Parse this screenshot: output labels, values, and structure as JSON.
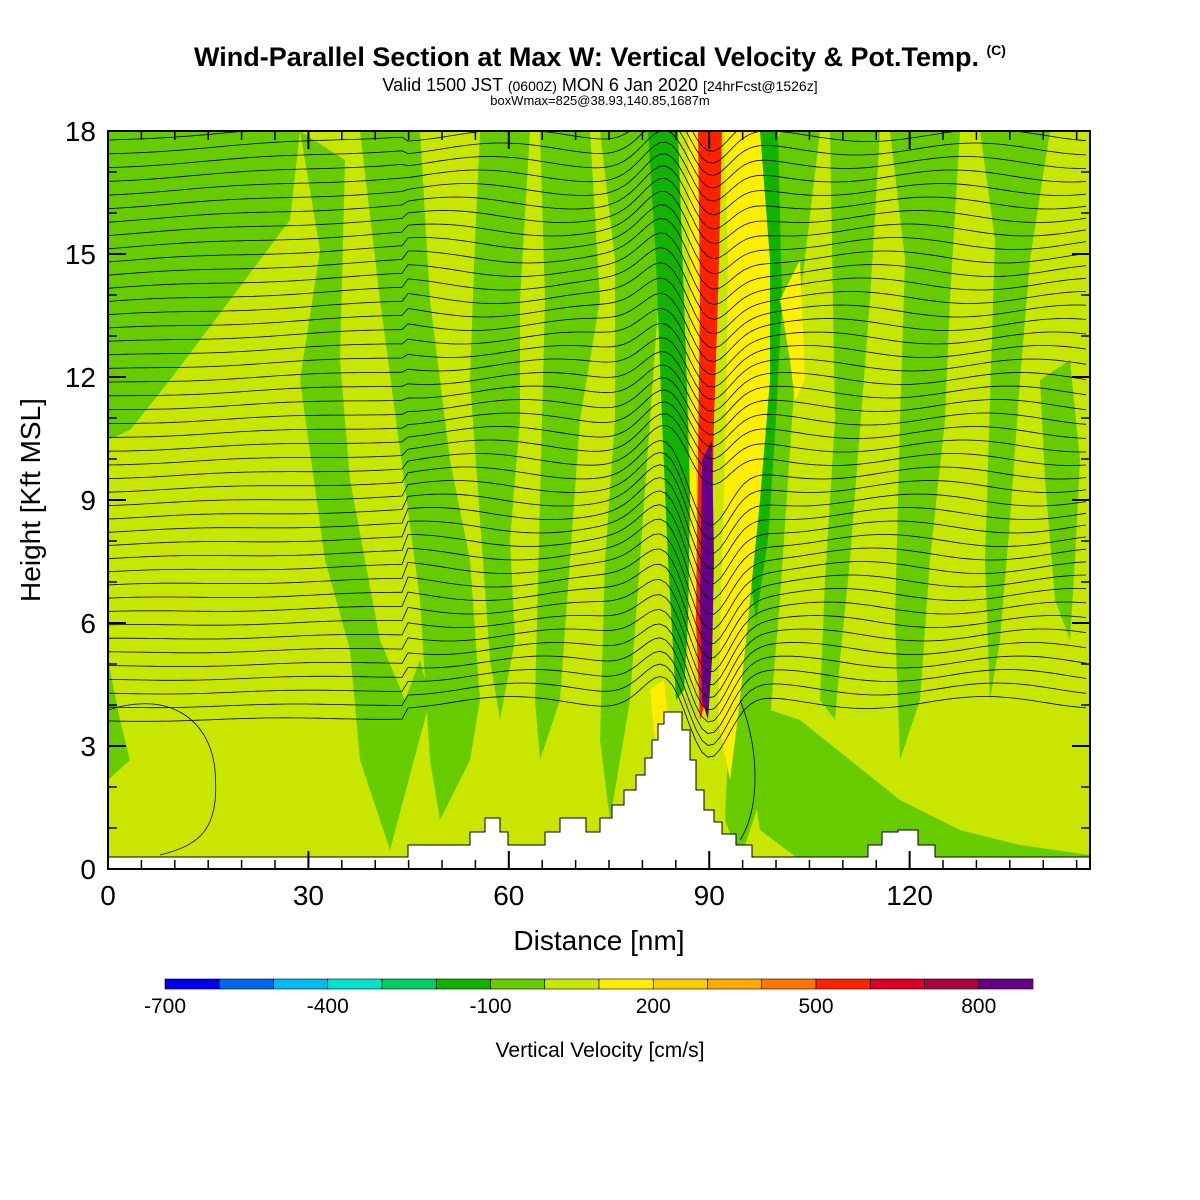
{
  "header": {
    "title_main": "Wind-Parallel Section at Max W: Vertical Velocity & Pot.Temp.",
    "title_mark": "(C)",
    "valid_prefix": "Valid 1500 JST",
    "valid_utc": "(0600Z)",
    "valid_date": "MON 6 Jan 2020",
    "forecast": "[24hrFcst@1526z]",
    "box_info": "boxWmax=825@38.93,140.85,1687m"
  },
  "chart_data": {
    "type": "heatmap",
    "xlabel": "Distance [nm]",
    "ylabel": "Height [Kft MSL]",
    "xlim": [
      0,
      147
    ],
    "ylim": [
      0,
      18
    ],
    "x_ticks": [
      0,
      30,
      60,
      90,
      120
    ],
    "y_ticks": [
      0,
      3,
      6,
      9,
      12,
      15,
      18
    ],
    "colorbar": {
      "label": "Vertical Velocity [cm/s]",
      "tick_labels": [
        "-700",
        "-400",
        "-100",
        "200",
        "500",
        "800"
      ],
      "bins": [
        {
          "min": -700,
          "max": -600,
          "color": "#0000ee"
        },
        {
          "min": -600,
          "max": -500,
          "color": "#0066ee"
        },
        {
          "min": -500,
          "max": -400,
          "color": "#00bbf0"
        },
        {
          "min": -400,
          "max": -300,
          "color": "#00e5cc"
        },
        {
          "min": -300,
          "max": -200,
          "color": "#00cc6a"
        },
        {
          "min": -200,
          "max": -100,
          "color": "#11b200"
        },
        {
          "min": -100,
          "max": 0,
          "color": "#66cc00"
        },
        {
          "min": 0,
          "max": 100,
          "color": "#c8e600"
        },
        {
          "min": 100,
          "max": 200,
          "color": "#ffee00"
        },
        {
          "min": 200,
          "max": 300,
          "color": "#ffcc00"
        },
        {
          "min": 300,
          "max": 400,
          "color": "#ffaa00"
        },
        {
          "min": 400,
          "max": 500,
          "color": "#ff7700"
        },
        {
          "min": 500,
          "max": 600,
          "color": "#ff2200"
        },
        {
          "min": 600,
          "max": 700,
          "color": "#dd0022"
        },
        {
          "min": 700,
          "max": 800,
          "color": "#aa0044"
        },
        {
          "min": 800,
          "max": 900,
          "color": "#660088"
        }
      ]
    },
    "regions": [
      {
        "name": "background",
        "value": 50,
        "color": "#c8e600"
      },
      {
        "name": "downdraft",
        "value": -50,
        "color": "#66cc00"
      },
      {
        "name": "strong-downdraft",
        "value": -150,
        "color": "#11b200"
      },
      {
        "name": "lee-updraft",
        "value": 150,
        "color": "#ffee00"
      },
      {
        "name": "updraft-core",
        "value": 550,
        "color": "#ff2200"
      },
      {
        "name": "updraft-max",
        "value": 800,
        "color": "#660088"
      }
    ],
    "max_w_cm_s": 825,
    "max_w_lat": 38.93,
    "max_w_lon": 140.85,
    "max_w_height_m": 1687,
    "terrain_peak": {
      "x": 87,
      "y": 3.8
    }
  }
}
